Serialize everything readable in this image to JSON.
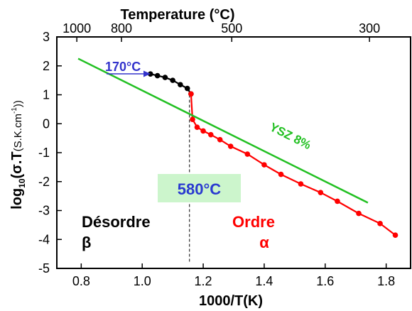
{
  "chart_data": {
    "type": "scatter",
    "xlabel": "1000/T(K)",
    "ylabel_main": "log",
    "ylabel_sub": "10",
    "ylabel_rest": "(σ.T",
    "ylabel_units": "(S.K.cm",
    "ylabel_units_sup": "-1",
    "ylabel_close": "))",
    "top_axis_title": "Temperature (°C)",
    "xlim": [
      0.72,
      1.88
    ],
    "ylim": [
      -5,
      3
    ],
    "x_ticks": [
      0.8,
      1.0,
      1.2,
      1.4,
      1.6,
      1.8
    ],
    "x_tick_labels": [
      "0.8",
      "1.0",
      "1.2",
      "1.4",
      "1.6",
      "1.8"
    ],
    "y_ticks": [
      -5,
      -4,
      -3,
      -2,
      -1,
      0,
      1,
      2,
      3
    ],
    "y_tick_labels": [
      "-5",
      "-4",
      "-3",
      "-2",
      "-1",
      "0",
      "1",
      "2",
      "3"
    ],
    "top_ticks_celsius": [
      1000,
      800,
      500,
      300
    ],
    "top_tick_labels": [
      "1000",
      "800",
      "500",
      "300"
    ],
    "series": [
      {
        "name": "",
        "color": "#000000",
        "points": [
          [
            1.027,
            1.72
          ],
          [
            1.05,
            1.66
          ],
          [
            1.075,
            1.6
          ],
          [
            1.1,
            1.5
          ],
          [
            1.125,
            1.35
          ],
          [
            1.148,
            1.22
          ],
          [
            1.16,
            1.03
          ]
        ]
      },
      {
        "name": "",
        "color": "#ff0000",
        "points": [
          [
            1.16,
            1.03
          ],
          [
            1.165,
            0.15
          ],
          [
            1.18,
            -0.12
          ],
          [
            1.2,
            -0.25
          ],
          [
            1.225,
            -0.38
          ],
          [
            1.255,
            -0.55
          ],
          [
            1.29,
            -0.78
          ],
          [
            1.345,
            -1.05
          ],
          [
            1.4,
            -1.42
          ],
          [
            1.455,
            -1.75
          ],
          [
            1.52,
            -2.08
          ],
          [
            1.585,
            -2.38
          ],
          [
            1.64,
            -2.68
          ],
          [
            1.71,
            -3.1
          ],
          [
            1.78,
            -3.45
          ],
          [
            1.83,
            -3.85
          ]
        ]
      },
      {
        "name": "YSZ 8%",
        "color": "#22c022",
        "line": [
          [
            0.79,
            2.25
          ],
          [
            1.74,
            -2.73
          ]
        ]
      }
    ],
    "transition_line_x": 1.155,
    "annotations": {
      "arrow_label": "170°C",
      "arrow_color": "#3333cc",
      "transition_label": "580°C",
      "transition_label_color": "#2a3ad0",
      "transition_box_color": "#ccf5cc",
      "beta_label_top": "Désordre",
      "beta_label_bottom": "β",
      "alpha_label_top": "Ordre",
      "alpha_label_bottom": "α",
      "alpha_color": "#ff0000",
      "ysz_label": "YSZ 8%"
    }
  }
}
